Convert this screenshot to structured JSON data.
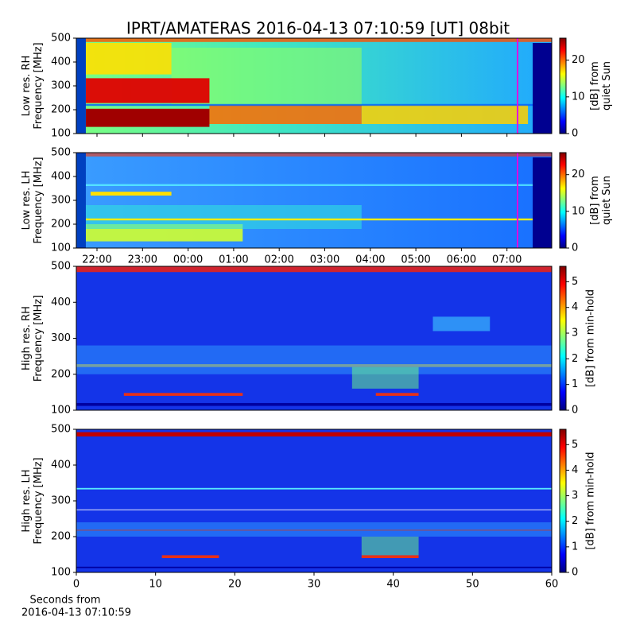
{
  "chart_data": [
    {
      "type": "spectrogram",
      "title": "IPRT/AMATERAS 2016-04-13 07:10:59 [UT]   08bit",
      "ylabel": [
        "Low res. RH",
        "Frequency [MHz]"
      ],
      "ylim": [
        100,
        500
      ],
      "yticks": [
        100,
        200,
        300,
        400,
        500
      ],
      "colorbar_label": [
        "[dB] from",
        "quiet Sun"
      ],
      "clim": [
        0,
        26
      ],
      "cticks": [
        0,
        10,
        20
      ]
    },
    {
      "type": "spectrogram",
      "ylabel": [
        "Low res. LH",
        "Frequency [MHz]"
      ],
      "ylim": [
        100,
        500
      ],
      "yticks": [
        100,
        200,
        300,
        400,
        500
      ],
      "xtick_labels": [
        "22:00",
        "23:00",
        "00:00",
        "01:00",
        "02:00",
        "03:00",
        "04:00",
        "05:00",
        "06:00",
        "07:00"
      ],
      "colorbar_label": [
        "[dB] from",
        "quiet Sun"
      ],
      "clim": [
        0,
        26
      ],
      "cticks": [
        0,
        10,
        20
      ]
    },
    {
      "type": "spectrogram",
      "ylabel": [
        "High res. RH",
        "Frequency [MHz]"
      ],
      "ylim": [
        100,
        500
      ],
      "yticks": [
        100,
        200,
        300,
        400,
        500
      ],
      "colorbar_label": [
        "[dB] from min-hold"
      ],
      "clim": [
        0,
        5.6
      ],
      "cticks": [
        0,
        1,
        2,
        3,
        4,
        5
      ]
    },
    {
      "type": "spectrogram",
      "ylabel": [
        "High res. LH",
        "Frequency [MHz]"
      ],
      "ylim": [
        100,
        500
      ],
      "yticks": [
        100,
        200,
        300,
        400,
        500
      ],
      "xlim": [
        0,
        60
      ],
      "xticks": [
        0,
        10,
        20,
        30,
        40,
        50,
        60
      ],
      "xlabel": [
        "Seconds from",
        "2016-04-13 07:10:59"
      ],
      "colorbar_label": [
        "[dB] from min-hold"
      ],
      "clim": [
        0,
        5.6
      ],
      "cticks": [
        0,
        1,
        2,
        3,
        4,
        5
      ]
    }
  ]
}
